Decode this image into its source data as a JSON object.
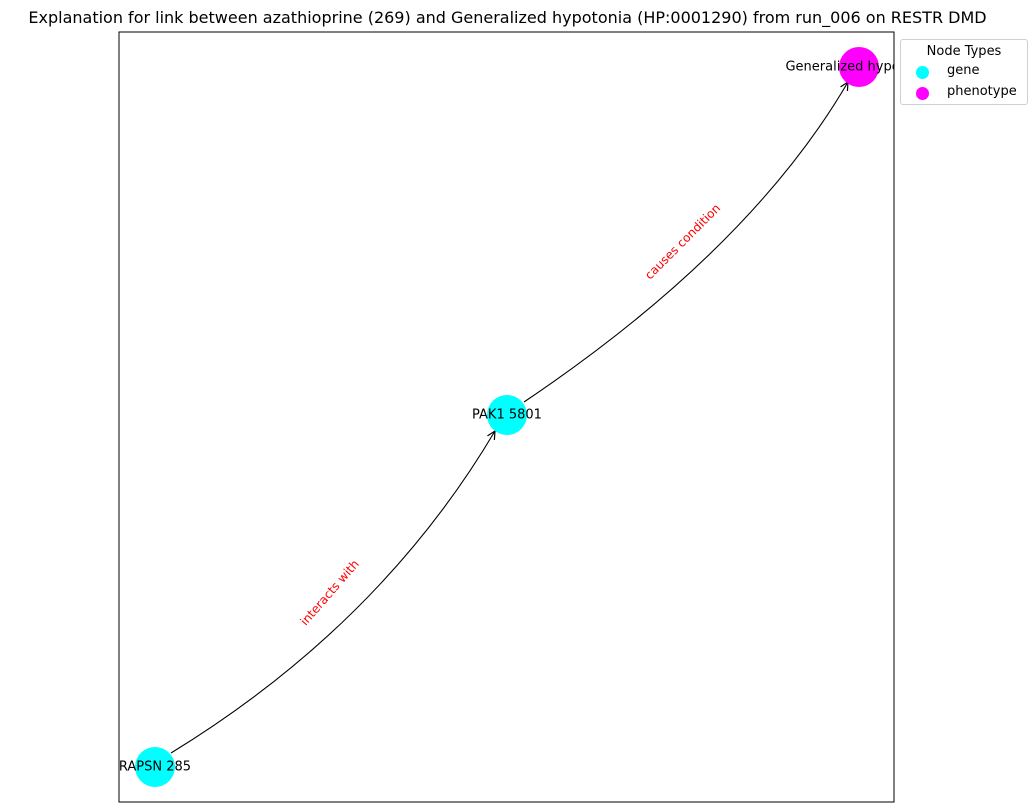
{
  "title": "Explanation for link between azathioprine (269) and Generalized hypotonia (HP:0001290) from run_006 on RESTR DMD",
  "legend": {
    "title": "Node Types",
    "items": [
      {
        "label": "gene",
        "color": "#00ffff"
      },
      {
        "label": "phenotype",
        "color": "#ff00ff"
      }
    ]
  },
  "nodes": [
    {
      "id": "rapsn",
      "label": "RAPSN 285",
      "type": "gene",
      "color": "#00ffff"
    },
    {
      "id": "pak1",
      "label": "PAK1 5801",
      "type": "gene",
      "color": "#00ffff"
    },
    {
      "id": "hypotonia",
      "label": "Generalized hypotonia",
      "type": "phenotype",
      "color": "#ff00ff"
    }
  ],
  "edges": [
    {
      "from": "rapsn",
      "to": "pak1",
      "label": "interacts with",
      "label_color": "#ff0000"
    },
    {
      "from": "pak1",
      "to": "hypotonia",
      "label": "causes condition",
      "label_color": "#ff0000"
    }
  ]
}
